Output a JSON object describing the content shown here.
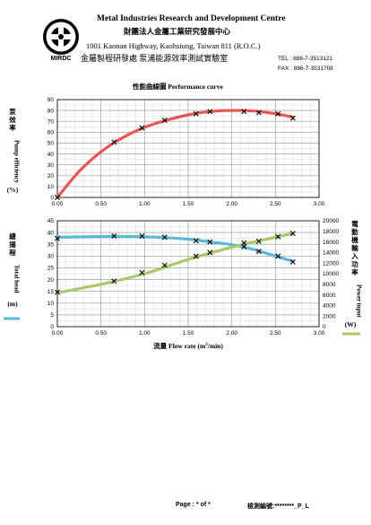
{
  "header": {
    "title": "Metal Industries Research and Development Centre",
    "title_zh": "財團法人金屬工業研究發展中心",
    "address": "1001 Kaonan Highway, Kaohsiung, Taiwan 811 (R.O.C.)",
    "lab": "金屬製程研發處  泵浦能源效率測試實驗室",
    "tel": "TEL : 886-7-3513121",
    "fax": "FAX : 886-7-3531708",
    "logo_text": "MIRDC"
  },
  "chart_title": "性能曲線圖    Performance curve",
  "footer": {
    "page": "Page : * of *",
    "report": "檢測編號:********_P_L"
  },
  "chart_data": [
    {
      "type": "scatter",
      "title": "",
      "ylabel_zh": "泵效率",
      "ylabel": "Pump efficiency",
      "yunit": "(%)",
      "xlim": [
        0,
        3
      ],
      "xticks": [
        "0.00",
        "0.50",
        "1.00",
        "1.50",
        "2.00",
        "2.50",
        "3.00"
      ],
      "ylim": [
        0,
        90
      ],
      "yticks": [
        "0",
        "10",
        "20",
        "30",
        "40",
        "50",
        "60",
        "70",
        "80",
        "90"
      ],
      "grid": true,
      "series": [
        {
          "name": "",
          "color": "#e85555",
          "marker": "x",
          "x": [
            0.0,
            0.65,
            0.97,
            1.23,
            1.59,
            1.75,
            2.14,
            2.31,
            2.53,
            2.7
          ],
          "y": [
            0,
            51,
            64,
            71,
            77,
            79,
            79,
            78,
            77,
            73
          ]
        }
      ],
      "fit_curve": {
        "color": "#e85555",
        "x": [
          0.0,
          0.25,
          0.5,
          0.75,
          1.0,
          1.25,
          1.5,
          1.75,
          2.0,
          2.25,
          2.5,
          2.7
        ],
        "y": [
          0,
          24,
          42,
          55,
          64.5,
          71,
          76,
          79,
          80,
          79.5,
          77,
          74
        ]
      }
    },
    {
      "type": "scatter",
      "ylabel_zh": "總揚程",
      "ylabel": "Total head",
      "yunit": "(m)",
      "y2label_zh": "電動機輸入功率",
      "y2label": "Power input",
      "y2unit": "(W)",
      "xlabel_zh": "流量",
      "xlabel": "Flow rate (m",
      "xlabel_sup": "3",
      "xlabel_end": "/min)",
      "xlim": [
        0,
        3
      ],
      "xticks": [
        "0.00",
        "0.50",
        "1.00",
        "1.50",
        "2.00",
        "2.50",
        "3.00"
      ],
      "ylim": [
        0,
        45
      ],
      "yticks": [
        "0",
        "5",
        "10",
        "15",
        "20",
        "25",
        "30",
        "35",
        "40",
        "45"
      ],
      "y2lim": [
        0,
        20000
      ],
      "y2ticks": [
        "0",
        "2000",
        "4000",
        "6000",
        "8000",
        "10000",
        "12000",
        "14000",
        "16000",
        "18000",
        "20000"
      ],
      "grid": true,
      "series": [
        {
          "name": "",
          "axis": "left",
          "color": "#5bb8d6",
          "marker": "x",
          "x": [
            0.0,
            0.65,
            0.97,
            1.23,
            1.59,
            1.75,
            2.14,
            2.31,
            2.53,
            2.7
          ],
          "y": [
            37.5,
            38.5,
            38.5,
            38,
            36.5,
            36,
            34,
            32,
            30,
            27.5
          ],
          "fit_x": [
            0.0,
            0.5,
            1.0,
            1.5,
            1.75,
            2.0,
            2.25,
            2.5,
            2.7
          ],
          "fit_y": [
            38,
            38.3,
            38.2,
            37.2,
            36,
            34.8,
            32.8,
            30,
            27.8
          ]
        },
        {
          "name": "",
          "axis": "right",
          "color": "#a8c96a",
          "marker": "x",
          "x": [
            0.0,
            0.65,
            0.97,
            1.23,
            1.59,
            1.75,
            2.14,
            2.31,
            2.53,
            2.7
          ],
          "y": [
            6500,
            8600,
            10200,
            11600,
            13300,
            14000,
            15800,
            16100,
            17000,
            17600
          ],
          "fit_x": [
            0.0,
            0.5,
            1.0,
            1.5,
            2.0,
            2.5,
            2.7
          ],
          "fit_y": [
            6400,
            8000,
            10000,
            12700,
            15000,
            16900,
            17600
          ]
        }
      ]
    }
  ]
}
